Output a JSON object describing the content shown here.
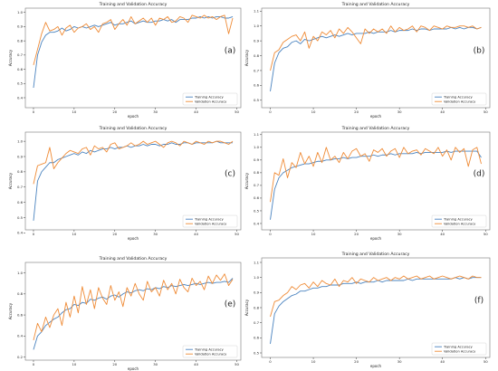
{
  "colors": {
    "training": "#4a83bf",
    "validation": "#ef8b36",
    "axis": "#333333",
    "text": "#222222",
    "frame": "#777777"
  },
  "chart_data": [
    {
      "type": "line",
      "panel_label": "(a)",
      "title": "Training and Validation Accuracy",
      "xlabel": "epoch",
      "ylabel": "Accuracy",
      "xlim": [
        -2,
        51
      ],
      "ylim": [
        0.33,
        1.03
      ],
      "xticks": [
        0,
        10,
        20,
        30,
        40,
        50
      ],
      "yticks": [
        0.4,
        0.5,
        0.6,
        0.7,
        0.8,
        0.9,
        1.0
      ],
      "x": [
        0,
        1,
        2,
        3,
        4,
        5,
        6,
        7,
        8,
        9,
        10,
        11,
        12,
        13,
        14,
        15,
        16,
        17,
        18,
        19,
        20,
        21,
        22,
        23,
        24,
        25,
        26,
        27,
        28,
        29,
        30,
        31,
        32,
        33,
        34,
        35,
        36,
        37,
        38,
        39,
        40,
        41,
        42,
        43,
        44,
        45,
        46,
        47,
        48,
        49
      ],
      "legend": "lower right",
      "series": [
        {
          "name": "Training Accuracy",
          "values": [
            0.47,
            0.7,
            0.79,
            0.84,
            0.86,
            0.86,
            0.87,
            0.89,
            0.87,
            0.88,
            0.9,
            0.89,
            0.9,
            0.89,
            0.9,
            0.91,
            0.9,
            0.91,
            0.92,
            0.93,
            0.91,
            0.92,
            0.92,
            0.93,
            0.94,
            0.92,
            0.93,
            0.94,
            0.93,
            0.93,
            0.94,
            0.94,
            0.95,
            0.94,
            0.95,
            0.93,
            0.95,
            0.95,
            0.95,
            0.96,
            0.96,
            0.97,
            0.96,
            0.97,
            0.96,
            0.97,
            0.97,
            0.96,
            0.96,
            0.97
          ]
        },
        {
          "name": "Validation Accuracy",
          "values": [
            0.63,
            0.74,
            0.85,
            0.93,
            0.87,
            0.88,
            0.9,
            0.84,
            0.89,
            0.91,
            0.86,
            0.89,
            0.9,
            0.92,
            0.88,
            0.9,
            0.86,
            0.92,
            0.93,
            0.95,
            0.88,
            0.92,
            0.95,
            0.91,
            0.97,
            0.92,
            0.94,
            0.96,
            0.93,
            0.96,
            0.91,
            0.96,
            0.95,
            0.97,
            0.93,
            0.94,
            0.97,
            0.96,
            0.93,
            0.98,
            0.97,
            0.96,
            0.98,
            0.96,
            0.97,
            0.95,
            0.97,
            0.98,
            0.85,
            0.96
          ]
        }
      ]
    },
    {
      "type": "line",
      "panel_label": "(b)",
      "title": "Training and Validation Accuracy",
      "xlabel": "epoch",
      "ylabel": "Accuracy",
      "xlim": [
        -2,
        51
      ],
      "ylim": [
        0.45,
        1.12
      ],
      "xticks": [
        0,
        10,
        20,
        30,
        40,
        50
      ],
      "yticks": [
        0.5,
        0.6,
        0.7,
        0.8,
        0.9,
        1.0,
        1.1
      ],
      "x": [
        0,
        1,
        2,
        3,
        4,
        5,
        6,
        7,
        8,
        9,
        10,
        11,
        12,
        13,
        14,
        15,
        16,
        17,
        18,
        19,
        20,
        21,
        22,
        23,
        24,
        25,
        26,
        27,
        28,
        29,
        30,
        31,
        32,
        33,
        34,
        35,
        36,
        37,
        38,
        39,
        40,
        41,
        42,
        43,
        44,
        45,
        46,
        47,
        48,
        49
      ],
      "legend": "lower right",
      "series": [
        {
          "name": "Training Accuracy",
          "values": [
            0.56,
            0.75,
            0.82,
            0.85,
            0.86,
            0.89,
            0.9,
            0.88,
            0.91,
            0.9,
            0.91,
            0.92,
            0.93,
            0.92,
            0.93,
            0.94,
            0.93,
            0.94,
            0.95,
            0.94,
            0.95,
            0.95,
            0.95,
            0.96,
            0.95,
            0.96,
            0.96,
            0.96,
            0.97,
            0.96,
            0.97,
            0.97,
            0.97,
            0.98,
            0.97,
            0.98,
            0.98,
            0.97,
            0.98,
            0.98,
            0.98,
            0.98,
            0.99,
            0.98,
            0.99,
            0.98,
            0.99,
            0.99,
            0.98,
            0.99
          ]
        },
        {
          "name": "Validation Accuracy",
          "values": [
            0.7,
            0.82,
            0.84,
            0.89,
            0.91,
            0.93,
            0.94,
            0.9,
            0.96,
            0.85,
            0.93,
            0.9,
            0.96,
            0.94,
            0.97,
            0.92,
            0.98,
            0.95,
            0.99,
            0.96,
            0.92,
            0.88,
            0.98,
            0.95,
            0.98,
            0.96,
            0.98,
            0.95,
            1.0,
            0.96,
            0.99,
            0.97,
            0.98,
            1.0,
            0.96,
            1.0,
            0.99,
            0.97,
            1.0,
            0.99,
            0.98,
            1.0,
            0.99,
            0.99,
            1.0,
            1.0,
            0.99,
            1.0,
            0.98,
            0.99
          ]
        }
      ]
    },
    {
      "type": "line",
      "panel_label": "(c)",
      "title": "Training and Validation Accuracy",
      "xlabel": "epoch",
      "ylabel": "Accuracy",
      "xlim": [
        -2,
        51
      ],
      "ylim": [
        0.42,
        1.06
      ],
      "xticks": [
        0,
        10,
        20,
        30,
        40,
        50
      ],
      "yticks": [
        0.4,
        0.5,
        0.6,
        0.7,
        0.8,
        0.9,
        1.0
      ],
      "x": [
        0,
        1,
        2,
        3,
        4,
        5,
        6,
        7,
        8,
        9,
        10,
        11,
        12,
        13,
        14,
        15,
        16,
        17,
        18,
        19,
        20,
        21,
        22,
        23,
        24,
        25,
        26,
        27,
        28,
        29,
        30,
        31,
        32,
        33,
        34,
        35,
        36,
        37,
        38,
        39,
        40,
        41,
        42,
        43,
        44,
        45,
        46,
        47,
        48,
        49
      ],
      "legend": "lower right",
      "series": [
        {
          "name": "Training Accuracy",
          "values": [
            0.48,
            0.74,
            0.8,
            0.83,
            0.86,
            0.86,
            0.88,
            0.89,
            0.9,
            0.91,
            0.92,
            0.91,
            0.93,
            0.92,
            0.94,
            0.93,
            0.94,
            0.95,
            0.95,
            0.96,
            0.95,
            0.96,
            0.96,
            0.97,
            0.96,
            0.97,
            0.97,
            0.98,
            0.97,
            0.98,
            0.98,
            0.97,
            0.98,
            0.98,
            0.99,
            0.98,
            0.98,
            0.99,
            0.99,
            0.98,
            0.99,
            0.99,
            0.99,
            0.99,
            0.99,
            1.0,
            0.99,
            0.99,
            0.99,
            0.99
          ]
        },
        {
          "name": "Validation Accuracy",
          "values": [
            0.72,
            0.84,
            0.85,
            0.86,
            0.96,
            0.82,
            0.86,
            0.89,
            0.92,
            0.94,
            0.93,
            0.92,
            0.95,
            0.96,
            0.91,
            0.97,
            0.95,
            0.96,
            0.93,
            0.98,
            0.99,
            0.95,
            0.96,
            0.97,
            0.99,
            0.97,
            0.98,
            1.0,
            0.98,
            0.99,
            1.0,
            0.98,
            0.96,
            0.99,
            1.0,
            0.99,
            0.97,
            1.0,
            0.99,
            0.98,
            1.0,
            0.99,
            0.98,
            1.0,
            0.99,
            1.0,
            1.0,
            0.99,
            0.98,
            1.0
          ]
        }
      ]
    },
    {
      "type": "line",
      "panel_label": "(d)",
      "title": "Training and Validation Accuracy",
      "xlabel": "epoch",
      "ylabel": "Accuracy",
      "xlim": [
        -2,
        51
      ],
      "ylim": [
        0.35,
        1.12
      ],
      "xticks": [
        0,
        10,
        20,
        30,
        40,
        50
      ],
      "yticks": [
        0.4,
        0.5,
        0.6,
        0.7,
        0.8,
        0.9,
        1.0,
        1.1
      ],
      "x": [
        0,
        1,
        2,
        3,
        4,
        5,
        6,
        7,
        8,
        9,
        10,
        11,
        12,
        13,
        14,
        15,
        16,
        17,
        18,
        19,
        20,
        21,
        22,
        23,
        24,
        25,
        26,
        27,
        28,
        29,
        30,
        31,
        32,
        33,
        34,
        35,
        36,
        37,
        38,
        39,
        40,
        41,
        42,
        43,
        44,
        45,
        46,
        47,
        48,
        49
      ],
      "legend": "lower right",
      "series": [
        {
          "name": "Training Accuracy",
          "values": [
            0.43,
            0.67,
            0.76,
            0.8,
            0.82,
            0.84,
            0.85,
            0.86,
            0.87,
            0.87,
            0.88,
            0.89,
            0.89,
            0.9,
            0.9,
            0.91,
            0.91,
            0.92,
            0.91,
            0.92,
            0.92,
            0.93,
            0.93,
            0.93,
            0.94,
            0.93,
            0.94,
            0.94,
            0.95,
            0.94,
            0.95,
            0.95,
            0.95,
            0.95,
            0.96,
            0.95,
            0.96,
            0.96,
            0.96,
            0.96,
            0.96,
            0.97,
            0.96,
            0.97,
            0.97,
            0.97,
            0.97,
            0.97,
            0.97,
            0.92
          ]
        },
        {
          "name": "Validation Accuracy",
          "values": [
            0.57,
            0.8,
            0.78,
            0.91,
            0.76,
            0.88,
            0.84,
            0.96,
            0.87,
            0.93,
            0.85,
            0.96,
            0.88,
            1.0,
            0.9,
            0.93,
            0.88,
            0.96,
            0.91,
            0.97,
            0.99,
            0.93,
            0.95,
            0.89,
            0.98,
            0.96,
            0.99,
            0.93,
            0.97,
            0.99,
            0.92,
            1.0,
            0.95,
            0.97,
            0.98,
            0.94,
            0.99,
            0.97,
            0.95,
            1.0,
            0.93,
            0.98,
            0.9,
            1.0,
            0.96,
            0.99,
            0.85,
            0.98,
            1.0,
            0.87
          ]
        }
      ]
    },
    {
      "type": "line",
      "panel_label": "(e)",
      "title": "Training and Validation Accuracy",
      "xlabel": "epoch",
      "ylabel": "Accuracy",
      "xlim": [
        -2,
        51
      ],
      "ylim": [
        0.17,
        1.1
      ],
      "xticks": [
        0,
        10,
        20,
        30,
        40,
        50
      ],
      "yticks": [
        0.2,
        0.4,
        0.6,
        0.8,
        1.0
      ],
      "x": [
        0,
        1,
        2,
        3,
        4,
        5,
        6,
        7,
        8,
        9,
        10,
        11,
        12,
        13,
        14,
        15,
        16,
        17,
        18,
        19,
        20,
        21,
        22,
        23,
        24,
        25,
        26,
        27,
        28,
        29,
        30,
        31,
        32,
        33,
        34,
        35,
        36,
        37,
        38,
        39,
        40,
        41,
        42,
        43,
        44,
        45,
        46,
        47,
        48,
        49
      ],
      "legend": "lower right",
      "series": [
        {
          "name": "Training Accuracy",
          "values": [
            0.27,
            0.4,
            0.44,
            0.5,
            0.53,
            0.56,
            0.58,
            0.62,
            0.65,
            0.66,
            0.7,
            0.69,
            0.72,
            0.71,
            0.75,
            0.74,
            0.76,
            0.77,
            0.75,
            0.78,
            0.79,
            0.77,
            0.8,
            0.82,
            0.81,
            0.83,
            0.84,
            0.83,
            0.85,
            0.84,
            0.86,
            0.85,
            0.87,
            0.86,
            0.88,
            0.87,
            0.88,
            0.89,
            0.88,
            0.89,
            0.9,
            0.89,
            0.9,
            0.91,
            0.9,
            0.91,
            0.91,
            0.92,
            0.91,
            0.95
          ]
        },
        {
          "name": "Validation Accuracy",
          "values": [
            0.36,
            0.52,
            0.44,
            0.58,
            0.48,
            0.6,
            0.66,
            0.5,
            0.72,
            0.58,
            0.78,
            0.62,
            0.87,
            0.7,
            0.84,
            0.66,
            0.86,
            0.76,
            0.7,
            0.88,
            0.74,
            0.82,
            0.68,
            0.86,
            0.78,
            0.9,
            0.8,
            0.74,
            0.92,
            0.82,
            0.86,
            0.78,
            0.93,
            0.84,
            0.9,
            0.8,
            0.94,
            0.86,
            0.82,
            0.95,
            0.88,
            0.92,
            0.84,
            0.97,
            0.9,
            0.98,
            0.93,
            0.99,
            0.88,
            0.94
          ]
        }
      ]
    },
    {
      "type": "line",
      "panel_label": "(f)",
      "title": "Training and Validation Accuracy",
      "xlabel": "epoch",
      "ylabel": "Accuracy",
      "xlim": [
        -2,
        51
      ],
      "ylim": [
        0.47,
        1.13
      ],
      "xticks": [
        0,
        10,
        20,
        30,
        40,
        50
      ],
      "yticks": [
        0.5,
        0.6,
        0.7,
        0.8,
        0.9,
        1.0,
        1.1
      ],
      "x": [
        0,
        1,
        2,
        3,
        4,
        5,
        6,
        7,
        8,
        9,
        10,
        11,
        12,
        13,
        14,
        15,
        16,
        17,
        18,
        19,
        20,
        21,
        22,
        23,
        24,
        25,
        26,
        27,
        28,
        29,
        30,
        31,
        32,
        33,
        34,
        35,
        36,
        37,
        38,
        39,
        40,
        41,
        42,
        43,
        44,
        45,
        46,
        47,
        48,
        49
      ],
      "legend": "lower right",
      "series": [
        {
          "name": "Training Accuracy",
          "values": [
            0.56,
            0.76,
            0.81,
            0.84,
            0.86,
            0.88,
            0.89,
            0.91,
            0.91,
            0.92,
            0.93,
            0.93,
            0.94,
            0.94,
            0.95,
            0.95,
            0.95,
            0.96,
            0.96,
            0.96,
            0.97,
            0.96,
            0.97,
            0.97,
            0.97,
            0.98,
            0.97,
            0.98,
            0.98,
            0.98,
            0.98,
            0.98,
            0.99,
            0.98,
            0.99,
            0.99,
            0.99,
            0.99,
            0.99,
            0.99,
            0.99,
            0.99,
            0.99,
            1.0,
            0.99,
            1.0,
            0.99,
            1.0,
            1.0,
            1.0
          ]
        },
        {
          "name": "Validation Accuracy",
          "values": [
            0.74,
            0.84,
            0.85,
            0.88,
            0.9,
            0.94,
            0.92,
            0.95,
            0.96,
            0.93,
            0.97,
            0.94,
            0.98,
            0.96,
            0.95,
            0.99,
            0.94,
            0.98,
            0.97,
            1.0,
            0.96,
            0.99,
            0.98,
            0.97,
            1.0,
            0.98,
            0.99,
            1.0,
            0.98,
            1.0,
            0.99,
            1.01,
            0.99,
            1.0,
            1.01,
            0.99,
            1.0,
            1.01,
            0.99,
            1.0,
            1.01,
            1.0,
            0.99,
            1.0,
            1.01,
            1.0,
            0.99,
            1.01,
            1.0,
            1.0
          ]
        }
      ]
    }
  ]
}
